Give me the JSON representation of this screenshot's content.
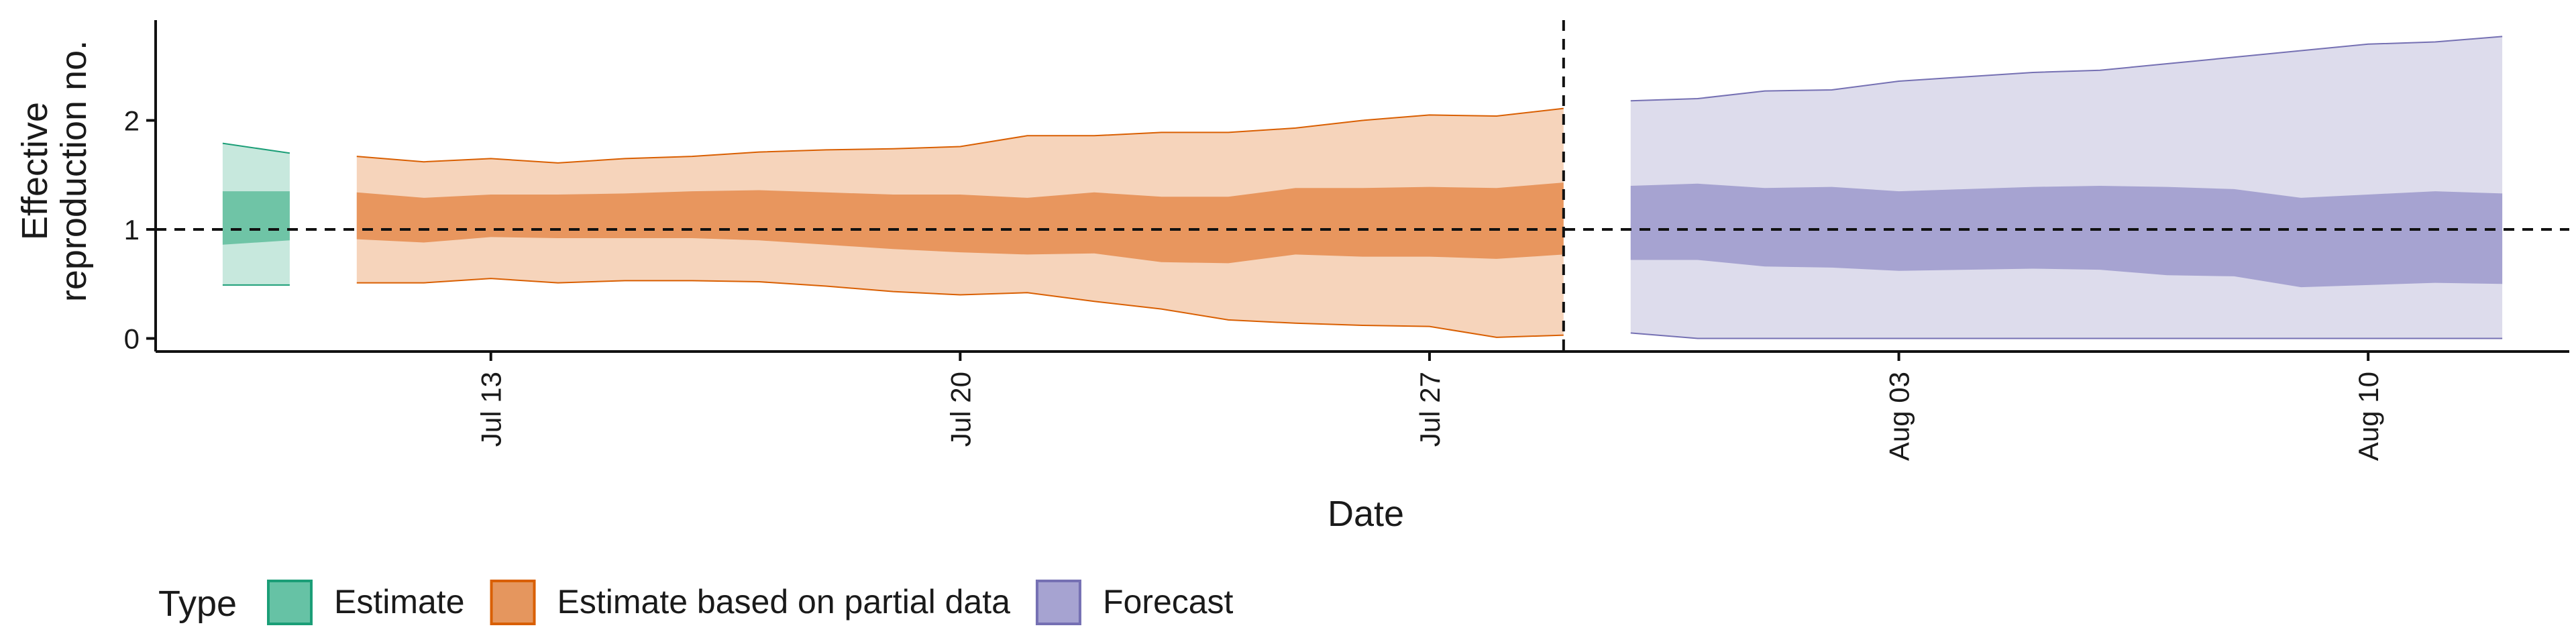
{
  "chart_data": {
    "type": "area",
    "title": "",
    "xlabel": "Date",
    "ylabel": [
      "Effective",
      "reproduction no."
    ],
    "x_axis": {
      "ticks": [
        {
          "date": "2020-07-13",
          "label": "Jul 13"
        },
        {
          "date": "2020-07-20",
          "label": "Jul 20"
        },
        {
          "date": "2020-07-27",
          "label": "Jul 27"
        },
        {
          "date": "2020-08-03",
          "label": "Aug 03"
        },
        {
          "date": "2020-08-10",
          "label": "Aug 10"
        }
      ],
      "range": [
        "2020-07-08",
        "2020-08-13"
      ]
    },
    "y_axis": {
      "ticks": [
        0,
        1,
        2
      ],
      "range": [
        -0.12,
        2.92
      ]
    },
    "reference_lines": {
      "horizontal_y": 1,
      "vertical_date": "2020-07-29"
    },
    "legend": {
      "title": "Type",
      "position": "bottom-left",
      "entries": [
        {
          "label": "Estimate",
          "fill": "#66C2A5",
          "stroke": "#1B9E77"
        },
        {
          "label": "Estimate based on partial data",
          "fill": "#E5965E",
          "stroke": "#D95F02"
        },
        {
          "label": "Forecast",
          "fill": "#A6A3D1",
          "stroke": "#7570B3"
        }
      ]
    },
    "series": [
      {
        "name": "Estimate",
        "colors": {
          "outer": "#C7E8DD",
          "inner": "#6FC4A6",
          "line": "#1B9E77"
        },
        "points": [
          {
            "date": "2020-07-09",
            "lower90": 0.49,
            "upper90": 1.79,
            "lower50": 0.86,
            "upper50": 1.35
          },
          {
            "date": "2020-07-10",
            "lower90": 0.49,
            "upper90": 1.7,
            "lower50": 0.9,
            "upper50": 1.35
          }
        ]
      },
      {
        "name": "Estimate based on partial data",
        "colors": {
          "outer": "#F6D4BB",
          "inner": "#E8965E",
          "line": "#D95F02"
        },
        "points": [
          {
            "date": "2020-07-11",
            "lower90": 0.51,
            "upper90": 1.67,
            "lower50": 0.91,
            "upper50": 1.34
          },
          {
            "date": "2020-07-12",
            "lower90": 0.51,
            "upper90": 1.62,
            "lower50": 0.88,
            "upper50": 1.29
          },
          {
            "date": "2020-07-13",
            "lower90": 0.55,
            "upper90": 1.65,
            "lower50": 0.93,
            "upper50": 1.32
          },
          {
            "date": "2020-07-14",
            "lower90": 0.51,
            "upper90": 1.61,
            "lower50": 0.92,
            "upper50": 1.32
          },
          {
            "date": "2020-07-15",
            "lower90": 0.53,
            "upper90": 1.65,
            "lower50": 0.92,
            "upper50": 1.33
          },
          {
            "date": "2020-07-16",
            "lower90": 0.53,
            "upper90": 1.67,
            "lower50": 0.92,
            "upper50": 1.35
          },
          {
            "date": "2020-07-17",
            "lower90": 0.52,
            "upper90": 1.71,
            "lower50": 0.9,
            "upper50": 1.36
          },
          {
            "date": "2020-07-18",
            "lower90": 0.48,
            "upper90": 1.73,
            "lower50": 0.86,
            "upper50": 1.34
          },
          {
            "date": "2020-07-19",
            "lower90": 0.43,
            "upper90": 1.74,
            "lower50": 0.82,
            "upper50": 1.32
          },
          {
            "date": "2020-07-20",
            "lower90": 0.4,
            "upper90": 1.76,
            "lower50": 0.79,
            "upper50": 1.32
          },
          {
            "date": "2020-07-21",
            "lower90": 0.42,
            "upper90": 1.86,
            "lower50": 0.77,
            "upper50": 1.29
          },
          {
            "date": "2020-07-22",
            "lower90": 0.34,
            "upper90": 1.86,
            "lower50": 0.78,
            "upper50": 1.34
          },
          {
            "date": "2020-07-23",
            "lower90": 0.27,
            "upper90": 1.89,
            "lower50": 0.7,
            "upper50": 1.3
          },
          {
            "date": "2020-07-24",
            "lower90": 0.17,
            "upper90": 1.89,
            "lower50": 0.69,
            "upper50": 1.3
          },
          {
            "date": "2020-07-25",
            "lower90": 0.14,
            "upper90": 1.93,
            "lower50": 0.77,
            "upper50": 1.38
          },
          {
            "date": "2020-07-26",
            "lower90": 0.12,
            "upper90": 2.0,
            "lower50": 0.75,
            "upper50": 1.38
          },
          {
            "date": "2020-07-27",
            "lower90": 0.11,
            "upper90": 2.05,
            "lower50": 0.75,
            "upper50": 1.39
          },
          {
            "date": "2020-07-28",
            "lower90": 0.01,
            "upper90": 2.04,
            "lower50": 0.73,
            "upper50": 1.38
          },
          {
            "date": "2020-07-29",
            "lower90": 0.03,
            "upper90": 2.11,
            "lower50": 0.77,
            "upper50": 1.43
          }
        ]
      },
      {
        "name": "Forecast",
        "colors": {
          "outer": "#DDDCEC",
          "inner": "#A6A3D1",
          "line": "#7570B3"
        },
        "points": [
          {
            "date": "2020-07-30",
            "lower90": 0.05,
            "upper90": 2.18,
            "lower50": 0.72,
            "upper50": 1.4
          },
          {
            "date": "2020-07-31",
            "lower90": 0.0,
            "upper90": 2.2,
            "lower50": 0.72,
            "upper50": 1.42
          },
          {
            "date": "2020-08-01",
            "lower90": 0.0,
            "upper90": 2.27,
            "lower50": 0.66,
            "upper50": 1.38
          },
          {
            "date": "2020-08-02",
            "lower90": 0.0,
            "upper90": 2.28,
            "lower50": 0.65,
            "upper50": 1.39
          },
          {
            "date": "2020-08-03",
            "lower90": 0.0,
            "upper90": 2.36,
            "lower50": 0.62,
            "upper50": 1.35
          },
          {
            "date": "2020-08-04",
            "lower90": 0.0,
            "upper90": 2.4,
            "lower50": 0.63,
            "upper50": 1.37
          },
          {
            "date": "2020-08-05",
            "lower90": 0.0,
            "upper90": 2.44,
            "lower50": 0.64,
            "upper50": 1.39
          },
          {
            "date": "2020-08-06",
            "lower90": 0.0,
            "upper90": 2.46,
            "lower50": 0.63,
            "upper50": 1.4
          },
          {
            "date": "2020-08-07",
            "lower90": 0.0,
            "upper90": 2.52,
            "lower50": 0.58,
            "upper50": 1.39
          },
          {
            "date": "2020-08-08",
            "lower90": 0.0,
            "upper90": 2.58,
            "lower50": 0.57,
            "upper50": 1.37
          },
          {
            "date": "2020-08-09",
            "lower90": 0.0,
            "upper90": 2.64,
            "lower50": 0.47,
            "upper50": 1.29
          },
          {
            "date": "2020-08-10",
            "lower90": 0.0,
            "upper90": 2.7,
            "lower50": 0.49,
            "upper50": 1.32
          },
          {
            "date": "2020-08-11",
            "lower90": 0.0,
            "upper90": 2.72,
            "lower50": 0.51,
            "upper50": 1.35
          },
          {
            "date": "2020-08-12",
            "lower90": 0.0,
            "upper90": 2.77,
            "lower50": 0.5,
            "upper50": 1.33
          }
        ]
      }
    ]
  }
}
